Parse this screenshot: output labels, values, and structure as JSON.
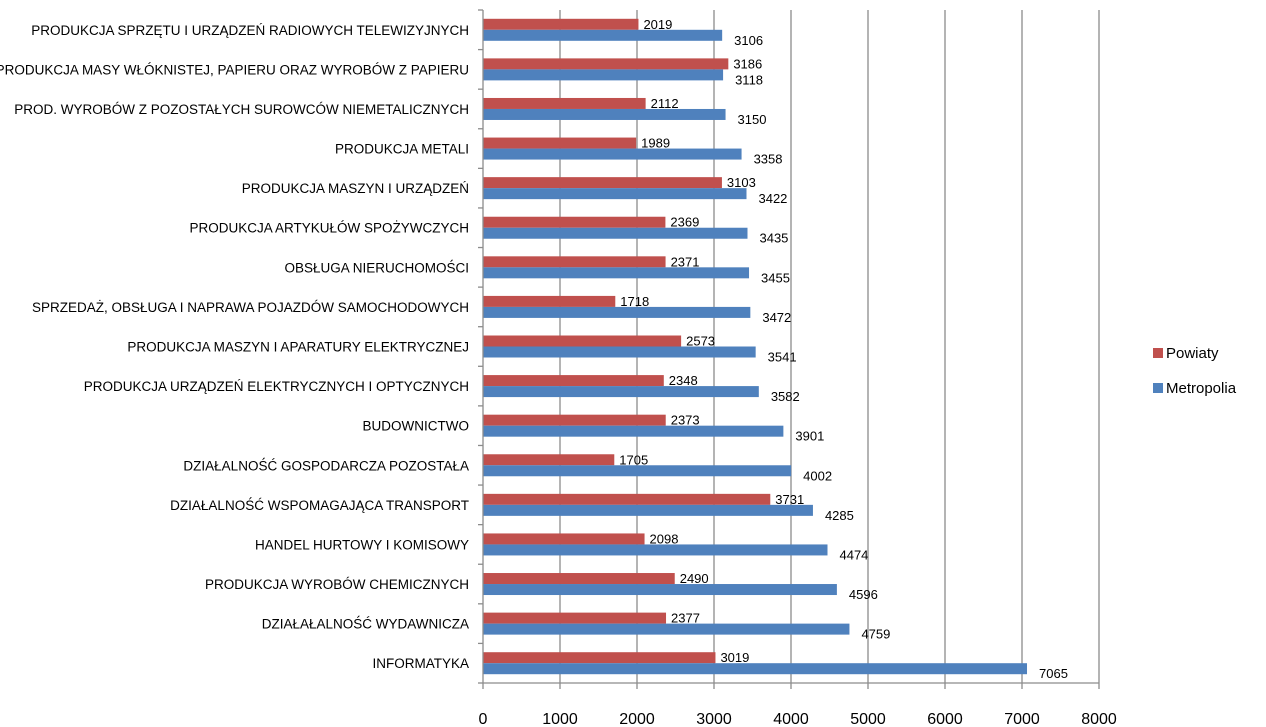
{
  "chart_data": {
    "type": "bar",
    "orientation": "horizontal",
    "categories": [
      "PRODUKCJA SPRZĘTU I URZĄDZEŃ RADIOWYCH TELEWIZYJNYCH",
      "PRODUKCJA MASY WŁÓKNISTEJ, PAPIERU ORAZ WYROBÓW Z PAPIERU",
      "PROD. WYROBÓW Z POZOSTAŁYCH SUROWCÓW NIEMETALICZNYCH",
      "PRODUKCJA METALI",
      "PRODUKCJA MASZYN I URZĄDZEŃ",
      "PRODUKCJA ARTYKUŁÓW SPOŻYWCZYCH",
      "OBSŁUGA NIERUCHOMOŚCI",
      "SPRZEDAŻ, OBSŁUGA I NAPRAWA POJAZDÓW SAMOCHODOWYCH",
      "PRODUKCJA MASZYN I APARATURY ELEKTRYCZNEJ",
      "PRODUKCJA URZĄDZEŃ ELEKTRYCZNYCH I OPTYCZNYCH",
      "BUDOWNICTWO",
      "DZIAŁALNOŚĆ GOSPODARCZA POZOSTAŁA",
      "DZIAŁALNOŚĆ WSPOMAGAJĄCA TRANSPORT",
      "HANDEL HURTOWY I KOMISOWY",
      "PRODUKCJA WYROBÓW CHEMICZNYCH",
      "DZIAŁAŁALNOŚĆ WYDAWNICZA",
      "INFORMATYKA"
    ],
    "series": [
      {
        "name": "Powiaty",
        "color": "#c0504d",
        "values": [
          2019,
          3186,
          2112,
          1989,
          3103,
          2369,
          2371,
          1718,
          2573,
          2348,
          2373,
          1705,
          3731,
          2098,
          2490,
          2377,
          3019
        ]
      },
      {
        "name": "Metropolia",
        "color": "#4f81bd",
        "values": [
          3106,
          3118,
          3150,
          3358,
          3422,
          3435,
          3455,
          3472,
          3541,
          3582,
          3901,
          4002,
          4285,
          4474,
          4596,
          4759,
          7065
        ]
      }
    ],
    "xlim": [
      0,
      8000
    ],
    "xticks": [
      0,
      1000,
      2000,
      3000,
      4000,
      5000,
      6000,
      7000,
      8000
    ],
    "grid": "vertical",
    "legend": "right",
    "title": "",
    "xlabel": "",
    "ylabel": ""
  }
}
